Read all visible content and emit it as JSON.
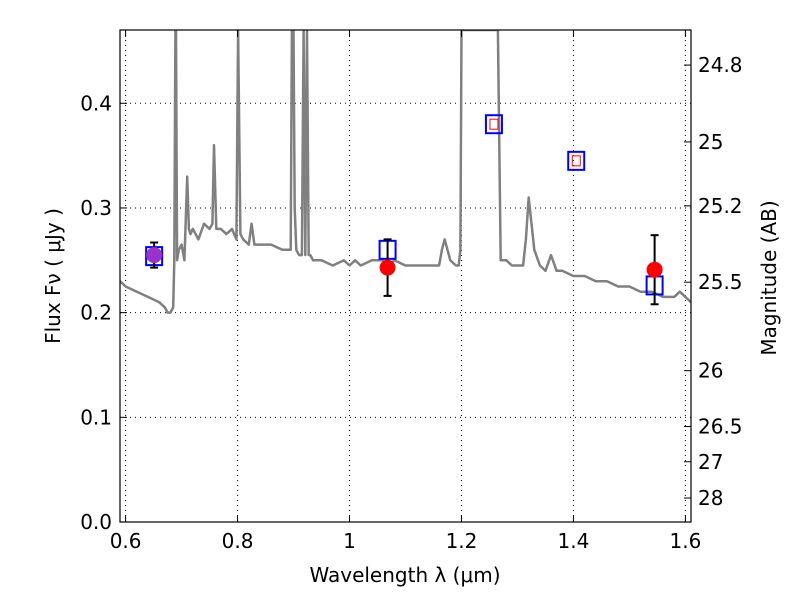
{
  "chart_data": {
    "type": "scatter",
    "xlabel": "Wavelength  λ (μm)",
    "ylabel": "Flux  Fν  ( μJy )",
    "y2label": "Magnitude (AB)",
    "xlim": [
      0.59,
      1.61
    ],
    "ylim": [
      0.0,
      0.47
    ],
    "x_ticks": [
      "0.6",
      "0.8",
      "1",
      "1.2",
      "1.4",
      "1.6"
    ],
    "x_tick_values": [
      0.6,
      0.8,
      1.0,
      1.2,
      1.4,
      1.6
    ],
    "y_ticks": [
      "0.0",
      "0.1",
      "0.2",
      "0.3",
      "0.4"
    ],
    "y_tick_values": [
      0.0,
      0.1,
      0.2,
      0.3,
      0.4
    ],
    "y2_ticks": [
      "24.8",
      "25",
      "25.2",
      "25.5",
      "26",
      "26.5",
      "27",
      "28"
    ],
    "y2_tick_values": [
      24.8,
      25.0,
      25.2,
      25.5,
      26.0,
      26.5,
      27.0,
      28.0
    ],
    "grid": true,
    "colors": {
      "model_spectrum": "#808080",
      "observed": "#ff0000",
      "model_photometry": "#0000ff",
      "highlight": "#9933cc",
      "error_bar": "#000000"
    },
    "series": [
      {
        "kind": "line",
        "x": [
          0.59,
          0.6,
          0.62,
          0.64,
          0.66,
          0.67,
          0.675,
          0.68,
          0.685,
          0.687,
          0.689,
          0.69,
          0.692,
          0.695,
          0.7,
          0.705,
          0.71,
          0.713,
          0.716,
          0.72,
          0.73,
          0.74,
          0.75,
          0.755,
          0.758,
          0.762,
          0.77,
          0.78,
          0.79,
          0.798,
          0.801,
          0.805,
          0.81,
          0.82,
          0.825,
          0.83,
          0.84,
          0.86,
          0.88,
          0.895,
          0.897,
          0.9,
          0.902,
          0.905,
          0.91,
          0.915,
          0.918,
          0.921,
          0.924,
          0.927,
          0.93,
          0.935,
          0.95,
          0.97,
          0.99,
          1.0,
          1.01,
          1.02,
          1.04,
          1.06,
          1.07,
          1.08,
          1.1,
          1.12,
          1.14,
          1.16,
          1.165,
          1.17,
          1.18,
          1.19,
          1.195,
          1.198,
          1.2,
          1.203,
          1.206,
          1.21,
          1.22,
          1.24,
          1.25,
          1.255,
          1.26,
          1.265,
          1.27,
          1.28,
          1.29,
          1.3,
          1.31,
          1.315,
          1.32,
          1.33,
          1.34,
          1.35,
          1.36,
          1.37,
          1.38,
          1.4,
          1.42,
          1.44,
          1.46,
          1.48,
          1.5,
          1.52,
          1.54,
          1.56,
          1.58,
          1.59,
          1.6,
          1.61
        ],
        "y": [
          0.23,
          0.225,
          0.22,
          0.215,
          0.21,
          0.205,
          0.2,
          0.2,
          0.205,
          0.25,
          0.47,
          0.47,
          0.25,
          0.26,
          0.265,
          0.25,
          0.33,
          0.28,
          0.275,
          0.28,
          0.27,
          0.285,
          0.28,
          0.285,
          0.36,
          0.28,
          0.28,
          0.275,
          0.28,
          0.27,
          0.47,
          0.275,
          0.27,
          0.265,
          0.285,
          0.265,
          0.265,
          0.265,
          0.26,
          0.26,
          0.47,
          0.47,
          0.3,
          0.26,
          0.255,
          0.255,
          0.47,
          0.255,
          0.47,
          0.255,
          0.255,
          0.25,
          0.25,
          0.245,
          0.25,
          0.245,
          0.25,
          0.245,
          0.25,
          0.25,
          0.245,
          0.25,
          0.245,
          0.245,
          0.245,
          0.245,
          0.26,
          0.27,
          0.25,
          0.245,
          0.245,
          0.26,
          0.47,
          0.47,
          0.47,
          0.47,
          0.47,
          0.47,
          0.47,
          0.47,
          0.47,
          0.47,
          0.25,
          0.25,
          0.245,
          0.245,
          0.245,
          0.27,
          0.31,
          0.26,
          0.245,
          0.24,
          0.255,
          0.24,
          0.24,
          0.235,
          0.235,
          0.23,
          0.23,
          0.225,
          0.225,
          0.22,
          0.22,
          0.215,
          0.215,
          0.22,
          0.215,
          0.21
        ]
      },
      {
        "kind": "observed",
        "points": [
          {
            "x": 0.651,
            "y": 0.255,
            "err": 0.012
          },
          {
            "x": 1.068,
            "y": 0.243,
            "err": 0.027
          },
          {
            "x": 1.545,
            "y": 0.241,
            "err": 0.033
          }
        ]
      },
      {
        "kind": "model_photometry",
        "points": [
          {
            "x": 0.651,
            "y": 0.254
          },
          {
            "x": 1.068,
            "y": 0.26
          },
          {
            "x": 1.258,
            "y": 0.38
          },
          {
            "x": 1.405,
            "y": 0.345
          },
          {
            "x": 1.545,
            "y": 0.226
          }
        ]
      }
    ]
  }
}
